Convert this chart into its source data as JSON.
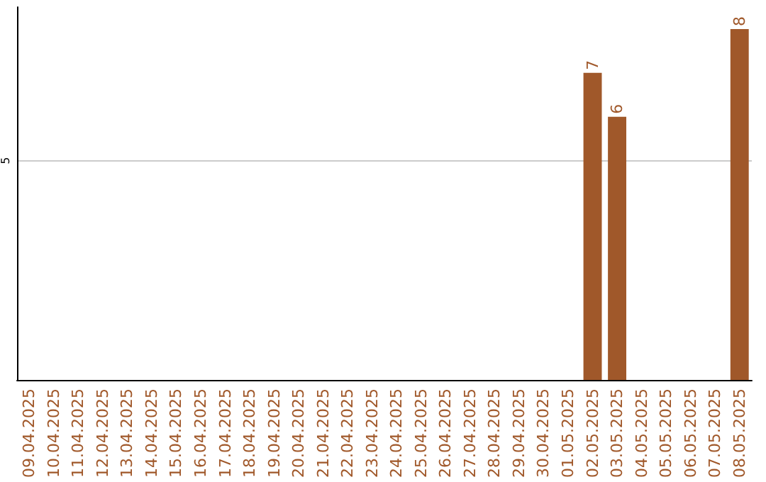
{
  "chart_data": {
    "type": "bar",
    "categories": [
      "09.04.2025",
      "10.04.2025",
      "11.04.2025",
      "12.04.2025",
      "13.04.2025",
      "14.04.2025",
      "15.04.2025",
      "16.04.2025",
      "17.04.2025",
      "18.04.2025",
      "19.04.2025",
      "20.04.2025",
      "21.04.2025",
      "22.04.2025",
      "23.04.2025",
      "24.04.2025",
      "25.04.2025",
      "26.04.2025",
      "27.04.2025",
      "28.04.2025",
      "29.04.2025",
      "30.04.2025",
      "01.05.2025",
      "02.05.2025",
      "03.05.2025",
      "04.05.2025",
      "05.05.2025",
      "06.05.2025",
      "07.05.2025",
      "08.05.2025"
    ],
    "values": [
      null,
      null,
      null,
      null,
      null,
      null,
      null,
      null,
      null,
      null,
      null,
      null,
      null,
      null,
      null,
      null,
      null,
      null,
      null,
      null,
      null,
      null,
      null,
      7,
      6,
      null,
      null,
      null,
      null,
      8
    ],
    "color": "#a0582a",
    "ylim": [
      0,
      8.5
    ],
    "yticks": [
      5
    ],
    "grid": "y",
    "data_labels": true
  }
}
